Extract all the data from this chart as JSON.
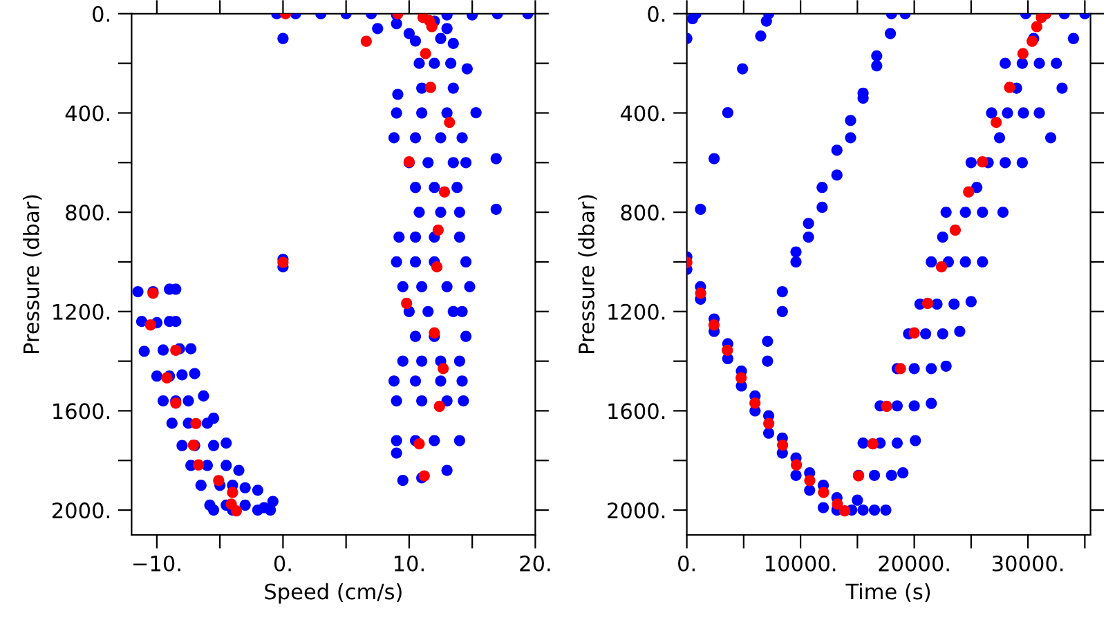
{
  "chart_data": [
    {
      "type": "scatter",
      "xlabel": "Speed (cm/s)",
      "ylabel": "Pressure (dbar)",
      "marker": "circle",
      "grid": false,
      "xlim": [
        -12,
        20
      ],
      "ylim": [
        2100,
        0
      ],
      "xticks": [
        {
          "value": -10,
          "label": "−10."
        },
        {
          "value": -5,
          "label": null
        },
        {
          "value": 0,
          "label": "0."
        },
        {
          "value": 5,
          "label": null
        },
        {
          "value": 10,
          "label": "10."
        },
        {
          "value": 15,
          "label": null
        },
        {
          "value": 20,
          "label": "20."
        }
      ],
      "yticks": [
        {
          "value": 0,
          "label": "0."
        },
        {
          "value": 200,
          "label": null
        },
        {
          "value": 400,
          "label": "400."
        },
        {
          "value": 600,
          "label": null
        },
        {
          "value": 800,
          "label": "800."
        },
        {
          "value": 1000,
          "label": null
        },
        {
          "value": 1200,
          "label": "1200."
        },
        {
          "value": 1400,
          "label": null
        },
        {
          "value": 1600,
          "label": "1600."
        },
        {
          "value": 1800,
          "label": null
        },
        {
          "value": 2000,
          "label": "2000."
        }
      ],
      "series": [
        {
          "color": "#0000ff",
          "x": [
            -0.5,
            1,
            3,
            5,
            7,
            9,
            13,
            15,
            17,
            19.4,
            0,
            0,
            0,
            7.5,
            9,
            10,
            12,
            13,
            10.5,
            12.5,
            13.5,
            14.6,
            16.9,
            16.9,
            10.8,
            12,
            13.3,
            9.1,
            11,
            13.5,
            9,
            11,
            13,
            15.3,
            8.8,
            10.5,
            12.5,
            14.2,
            10,
            11.5,
            13.5,
            14.5,
            10.5,
            12,
            13.8,
            10.8,
            12.5,
            14,
            9.2,
            10.5,
            12,
            14,
            9,
            10.5,
            12,
            14.5,
            9.5,
            11,
            13,
            14.8,
            10,
            11.5,
            13.5,
            14.2,
            10.5,
            12,
            14.5,
            9.5,
            11,
            12.5,
            14,
            8.8,
            10.5,
            12.5,
            14.2,
            9,
            11,
            13,
            14.3,
            9,
            10.5,
            12,
            14,
            9,
            9.5,
            11,
            13,
            -11.5,
            -10.3,
            -9,
            -8.5,
            -11.2,
            -10,
            -9,
            -8.5,
            -11,
            -9.5,
            -8.2,
            -7.3,
            -10,
            -9,
            -8,
            -7,
            -9.5,
            -8.5,
            -7.5,
            -6.3,
            -8.8,
            -7.5,
            -6,
            -5.5,
            -8,
            -7,
            -5.5,
            -4.5,
            -7.3,
            -6,
            -4.5,
            -3.5,
            -6.5,
            -5,
            -4,
            -3,
            -2,
            -5.8,
            -4.5,
            -3,
            -1.5,
            -0.8,
            -5.5,
            -4,
            -2,
            -1
          ],
          "values": [
            0,
            0,
            0,
            0,
            0,
            5,
            5,
            5,
            0,
            0,
            100,
            990,
            1020,
            60,
            40,
            80,
            30,
            60,
            110,
            100,
            120,
            222,
            584,
            788,
            200,
            200,
            200,
            325,
            300,
            300,
            400,
            400,
            400,
            399,
            500,
            500,
            500,
            500,
            600,
            600,
            600,
            600,
            700,
            700,
            700,
            800,
            800,
            800,
            900,
            900,
            900,
            900,
            1000,
            1000,
            1000,
            1000,
            1100,
            1100,
            1100,
            1100,
            1200,
            1200,
            1200,
            1200,
            1300,
            1300,
            1300,
            1400,
            1400,
            1400,
            1400,
            1480,
            1480,
            1480,
            1480,
            1560,
            1560,
            1560,
            1560,
            1720,
            1720,
            1720,
            1720,
            1770,
            1880,
            1870,
            1840,
            1120,
            1120,
            1110,
            1110,
            1240,
            1245,
            1240,
            1240,
            1360,
            1355,
            1350,
            1350,
            1460,
            1460,
            1455,
            1450,
            1560,
            1560,
            1560,
            1540,
            1650,
            1650,
            1650,
            1630,
            1740,
            1740,
            1740,
            1730,
            1820,
            1820,
            1820,
            1840,
            1900,
            1900,
            1900,
            1910,
            1920,
            1980,
            1980,
            1980,
            1990,
            1965,
            2000,
            2000,
            2000,
            2000
          ]
        },
        {
          "color": "#ff0000",
          "x": [
            0.2,
            9.1,
            11.1,
            11.6,
            11.8,
            6.6,
            11.3,
            11.7,
            13.2,
            10.0,
            12.8,
            12.3,
            12.2,
            9.8,
            12.0,
            12.7,
            12.4,
            10.8,
            11.2,
            0,
            -10.3,
            -10.5,
            -8.5,
            -9.2,
            -8.5,
            -6.9,
            -7.1,
            -6.7,
            -5.1,
            -4.0,
            -4.1,
            -3.7
          ],
          "values": [
            0,
            0,
            15,
            28,
            52,
            111,
            161,
            297,
            438,
            597,
            718,
            872,
            1020,
            1167,
            1286,
            1430,
            1582,
            1733,
            1862,
            1002,
            1126,
            1254,
            1356,
            1467,
            1569,
            1651,
            1738,
            1818,
            1881,
            1929,
            1976,
            2003
          ]
        }
      ]
    },
    {
      "type": "scatter",
      "xlabel": "Time (s)",
      "ylabel": "Pressure (dbar)",
      "marker": "circle",
      "grid": false,
      "xlim": [
        0,
        35500
      ],
      "ylim": [
        2100,
        0
      ],
      "xticks": [
        {
          "value": 0,
          "label": "0."
        },
        {
          "value": 5000,
          "label": null
        },
        {
          "value": 10000,
          "label": "10000."
        },
        {
          "value": 15000,
          "label": null
        },
        {
          "value": 20000,
          "label": "20000."
        },
        {
          "value": 25000,
          "label": null
        },
        {
          "value": 30000,
          "label": "30000."
        },
        {
          "value": 35000,
          "label": null
        }
      ],
      "yticks": [
        {
          "value": 0,
          "label": "0."
        },
        {
          "value": 200,
          "label": null
        },
        {
          "value": 400,
          "label": "400."
        },
        {
          "value": 600,
          "label": null
        },
        {
          "value": 800,
          "label": "800."
        },
        {
          "value": 1000,
          "label": null
        },
        {
          "value": 1200,
          "label": "1200."
        },
        {
          "value": 1400,
          "label": null
        },
        {
          "value": 1600,
          "label": "1600."
        },
        {
          "value": 1800,
          "label": null
        },
        {
          "value": 2000,
          "label": "2000."
        }
      ],
      "series": [
        {
          "color": "#0000ff",
          "x": [
            0,
            500,
            800,
            4900,
            3600,
            2400,
            1200,
            6500,
            7000,
            7200,
            7100,
            7100,
            8400,
            8400,
            9600,
            9600,
            10700,
            10700,
            11900,
            11900,
            13200,
            13200,
            14400,
            14400,
            15500,
            15500,
            16700,
            16700,
            17900,
            18000,
            19200,
            0,
            0,
            1200,
            1200,
            2400,
            2400,
            3600,
            3600,
            4800,
            4800,
            6000,
            6000,
            7200,
            7200,
            8400,
            8400,
            9600,
            9600,
            10800,
            10800,
            12000,
            12000,
            13200,
            13200,
            14500,
            15500,
            16500,
            17500,
            15000,
            15100,
            16500,
            18000,
            19000,
            15500,
            17000,
            18500,
            20100,
            17000,
            18500,
            20000,
            21500,
            18500,
            20000,
            21500,
            22800,
            19500,
            21000,
            22500,
            24000,
            20500,
            22000,
            23500,
            25000,
            21500,
            23000,
            24500,
            26000,
            22800,
            24500,
            26000,
            27800,
            25000,
            26500,
            28000,
            29500,
            26800,
            28200,
            29600,
            31000,
            28000,
            29500,
            31000,
            32500,
            29800,
            31500,
            33200,
            35000,
            22500,
            25500,
            27500,
            29000,
            30500,
            34000,
            33000,
            32000
          ],
          "values": [
            100,
            20,
            0,
            222,
            399,
            584,
            788,
            90,
            30,
            0,
            1400,
            1320,
            1200,
            1120,
            1000,
            960,
            900,
            845,
            780,
            700,
            650,
            550,
            500,
            430,
            340,
            320,
            210,
            170,
            80,
            0,
            0,
            980,
            1030,
            1100,
            1150,
            1230,
            1280,
            1330,
            1390,
            1440,
            1500,
            1540,
            1600,
            1620,
            1690,
            1710,
            1770,
            1790,
            1860,
            1850,
            1920,
            1900,
            1990,
            1950,
            2000,
            2000,
            2000,
            2000,
            2000,
            1960,
            1860,
            1860,
            1860,
            1850,
            1730,
            1730,
            1730,
            1720,
            1580,
            1580,
            1580,
            1570,
            1430,
            1430,
            1430,
            1420,
            1290,
            1290,
            1290,
            1280,
            1170,
            1170,
            1170,
            1160,
            1000,
            1000,
            1000,
            1000,
            800,
            800,
            800,
            800,
            600,
            600,
            600,
            600,
            400,
            400,
            400,
            400,
            200,
            200,
            200,
            200,
            0,
            0,
            0,
            0,
            900,
            700,
            500,
            300,
            100,
            100,
            300,
            500
          ]
        },
        {
          "color": "#ff0000",
          "x": [
            0,
            1215,
            2389,
            3563,
            4778,
            5993,
            7207,
            8422,
            9637,
            10811,
            12026,
            13240,
            13888,
            15103,
            16358,
            17573,
            18787,
            20002,
            21176,
            22391,
            23605,
            24780,
            25995,
            27209,
            28384,
            29558,
            30367,
            30772,
            30974,
            31177,
            31581
          ],
          "values": [
            1002,
            1126,
            1254,
            1356,
            1467,
            1569,
            1651,
            1738,
            1818,
            1881,
            1929,
            1976,
            2003,
            1862,
            1733,
            1582,
            1430,
            1286,
            1167,
            1020,
            872,
            718,
            597,
            438,
            297,
            161,
            111,
            52,
            null,
            15,
            0
          ]
        }
      ]
    }
  ]
}
